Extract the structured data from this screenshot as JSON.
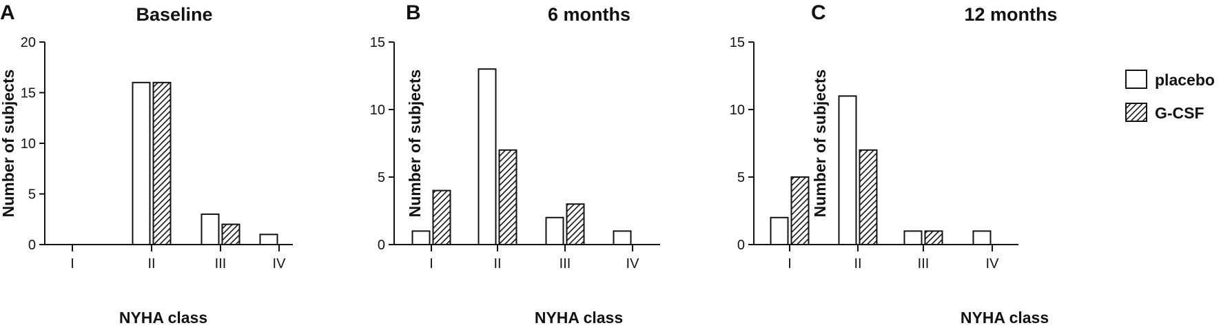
{
  "legend": [
    {
      "label": "placebo",
      "style": "open"
    },
    {
      "label": "G-CSF",
      "style": "hatched"
    }
  ],
  "colors": {
    "stroke": "#111111",
    "open_fill": "#ffffff",
    "hatch": "#111111"
  },
  "chart_data": [
    {
      "type": "bar",
      "panel": "A",
      "title": "Baseline",
      "xlabel": "NYHA class",
      "ylabel": "Number of subjects",
      "ylim": [
        0,
        20
      ],
      "yticks": [
        0,
        5,
        10,
        15,
        20
      ],
      "categories": [
        "I",
        "II",
        "III",
        "IV"
      ],
      "series": [
        {
          "name": "placebo",
          "values": [
            0,
            16,
            3,
            1
          ]
        },
        {
          "name": "G-CSF",
          "values": [
            0,
            16,
            2,
            0
          ]
        }
      ]
    },
    {
      "type": "bar",
      "panel": "B",
      "title": "6 months",
      "xlabel": "NYHA class",
      "ylabel": "Number of subjects",
      "ylim": [
        0,
        15
      ],
      "yticks": [
        0,
        5,
        10,
        15
      ],
      "categories": [
        "I",
        "II",
        "III",
        "IV"
      ],
      "series": [
        {
          "name": "placebo",
          "values": [
            1,
            13,
            2,
            1
          ]
        },
        {
          "name": "G-CSF",
          "values": [
            4,
            7,
            3,
            0
          ]
        }
      ]
    },
    {
      "type": "bar",
      "panel": "C",
      "title": "12 months",
      "xlabel": "NYHA class",
      "ylabel": "Number of subjects",
      "ylim": [
        0,
        15
      ],
      "yticks": [
        0,
        5,
        10,
        15
      ],
      "categories": [
        "I",
        "II",
        "III",
        "IV"
      ],
      "series": [
        {
          "name": "placebo",
          "values": [
            2,
            11,
            1,
            1
          ]
        },
        {
          "name": "G-CSF",
          "values": [
            5,
            7,
            1,
            0
          ]
        }
      ]
    }
  ]
}
